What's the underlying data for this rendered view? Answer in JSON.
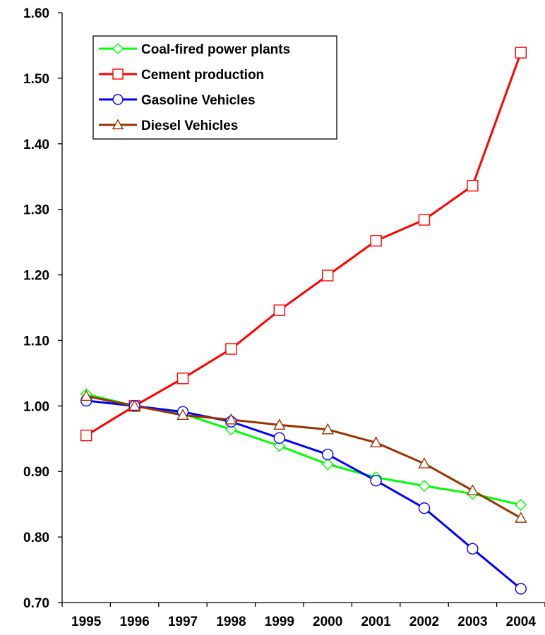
{
  "chart_data": {
    "type": "line",
    "title": "",
    "xlabel": "",
    "ylabel": "",
    "categories": [
      "1995",
      "1996",
      "1997",
      "1998",
      "1999",
      "2000",
      "2001",
      "2002",
      "2003",
      "2004"
    ],
    "ylim": [
      0.7,
      1.6
    ],
    "yticks": [
      "0.70",
      "0.80",
      "0.90",
      "1.00",
      "1.10",
      "1.20",
      "1.30",
      "1.40",
      "1.50",
      "1.60"
    ],
    "grid": false,
    "legend_position": "top-left",
    "series": [
      {
        "name": "Coal-fired power plants",
        "color": "#00ff00",
        "marker": "diamond",
        "values": [
          1.018,
          1.0,
          0.988,
          0.964,
          0.939,
          0.911,
          0.891,
          0.878,
          0.866,
          0.849
        ]
      },
      {
        "name": "Cement production",
        "color": "#ff0000",
        "marker": "square",
        "values": [
          0.955,
          1.0,
          1.042,
          1.087,
          1.146,
          1.199,
          1.252,
          1.284,
          1.336,
          1.539
        ]
      },
      {
        "name": "Gasoline Vehicles",
        "color": "#0000ff",
        "marker": "circle",
        "values": [
          1.008,
          1.0,
          0.991,
          0.976,
          0.951,
          0.926,
          0.886,
          0.844,
          0.782,
          0.721
        ]
      },
      {
        "name": "Diesel Vehicles",
        "color": "#993300",
        "marker": "triangle",
        "values": [
          1.015,
          1.0,
          0.986,
          0.979,
          0.971,
          0.964,
          0.944,
          0.912,
          0.871,
          0.829
        ]
      }
    ]
  }
}
